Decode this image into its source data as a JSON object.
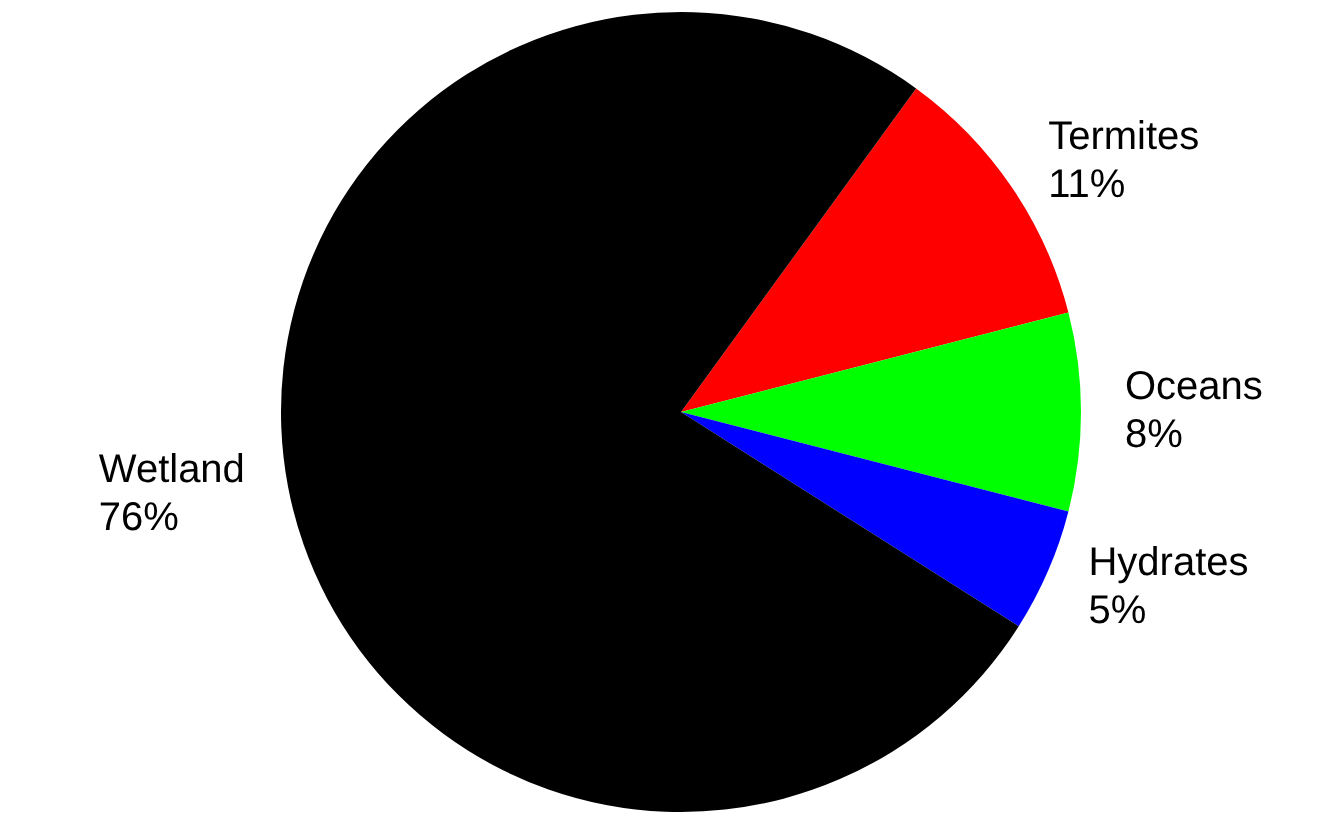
{
  "chart_data": {
    "type": "pie",
    "categories": [
      "Termites",
      "Oceans",
      "Hydrates",
      "Wetland"
    ],
    "values": [
      11,
      8,
      5,
      76
    ],
    "colors": [
      "#ff0000",
      "#00ff00",
      "#0000ff",
      "#000000"
    ],
    "value_labels": [
      "11%",
      "8%",
      "5%",
      "76%"
    ],
    "legend": false
  }
}
